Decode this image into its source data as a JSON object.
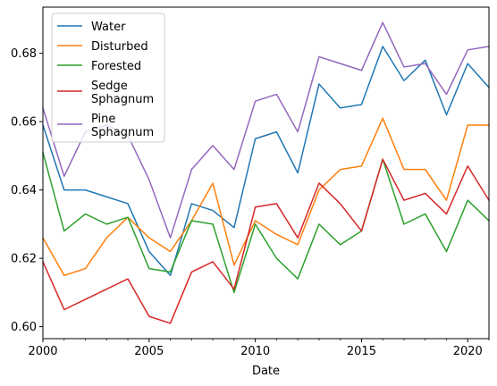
{
  "chart_data": {
    "type": "line",
    "xlabel": "Date",
    "ylabel": "",
    "xlim": [
      2000,
      2021
    ],
    "ylim": [
      0.5965,
      0.6935
    ],
    "x_ticks": [
      2000,
      2005,
      2010,
      2015,
      2020
    ],
    "x_tick_labels": [
      "2000",
      "2005",
      "2010",
      "2015",
      "2020"
    ],
    "y_ticks": [
      0.6,
      0.62,
      0.64,
      0.66,
      0.68
    ],
    "y_tick_labels": [
      "0.60",
      "0.62",
      "0.64",
      "0.66",
      "0.68"
    ],
    "grid": false,
    "legend_position": "upper-left",
    "x": [
      2000,
      2001,
      2002,
      2003,
      2004,
      2005,
      2006,
      2007,
      2008,
      2009,
      2010,
      2011,
      2012,
      2013,
      2014,
      2015,
      2016,
      2017,
      2018,
      2019,
      2020,
      2021
    ],
    "series": [
      {
        "name": "Water",
        "legend_lines": [
          "Water"
        ],
        "color": "#1f77b4",
        "values": [
          0.659,
          0.64,
          0.64,
          0.638,
          0.636,
          0.622,
          0.615,
          0.636,
          0.634,
          0.629,
          0.655,
          0.657,
          0.645,
          0.671,
          0.664,
          0.665,
          0.682,
          0.672,
          0.678,
          0.662,
          0.677,
          0.67
        ]
      },
      {
        "name": "Disturbed",
        "legend_lines": [
          "Disturbed"
        ],
        "color": "#ff7f0e",
        "values": [
          0.626,
          0.615,
          0.617,
          0.626,
          0.632,
          0.626,
          0.622,
          0.631,
          0.642,
          0.618,
          0.631,
          0.627,
          0.624,
          0.64,
          0.646,
          0.647,
          0.661,
          0.646,
          0.646,
          0.637,
          0.659,
          0.659
        ]
      },
      {
        "name": "Forested",
        "legend_lines": [
          "Forested"
        ],
        "color": "#2ca02c",
        "values": [
          0.651,
          0.628,
          0.633,
          0.63,
          0.632,
          0.617,
          0.616,
          0.631,
          0.63,
          0.61,
          0.63,
          0.62,
          0.614,
          0.63,
          0.624,
          0.628,
          0.649,
          0.63,
          0.633,
          0.622,
          0.637,
          0.631
        ]
      },
      {
        "name": "Sedge Sphagnum",
        "legend_lines": [
          "Sedge",
          "Sphagnum"
        ],
        "color": "#d62728",
        "values": [
          0.619,
          0.605,
          0.608,
          0.611,
          0.614,
          0.603,
          0.601,
          0.616,
          0.619,
          0.611,
          0.635,
          0.636,
          0.626,
          0.642,
          0.636,
          0.628,
          0.649,
          0.637,
          0.639,
          0.633,
          0.647,
          0.637
        ]
      },
      {
        "name": "Pine Sphagnum",
        "legend_lines": [
          "Pine",
          "Sphagnum"
        ],
        "color": "#9467bd",
        "values": [
          0.664,
          0.644,
          0.657,
          0.659,
          0.656,
          0.643,
          0.626,
          0.646,
          0.653,
          0.646,
          0.666,
          0.668,
          0.657,
          0.679,
          0.677,
          0.675,
          0.689,
          0.676,
          0.677,
          0.668,
          0.681,
          0.682
        ]
      }
    ]
  }
}
